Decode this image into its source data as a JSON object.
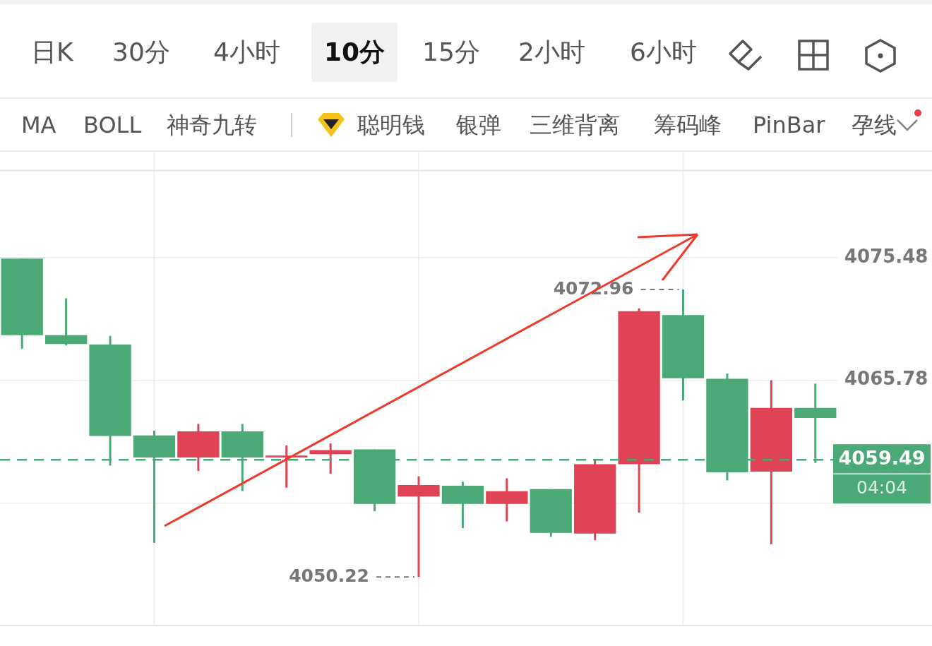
{
  "chart_data": {
    "type": "candlestick",
    "categories": [
      null,
      null,
      null,
      null,
      null,
      null,
      null,
      null,
      null,
      null,
      null,
      null,
      null,
      null,
      null,
      null,
      null,
      null,
      null
    ],
    "ohlc": [
      [
        4075.4,
        4075.4,
        4068.28,
        4069.34
      ],
      [
        4069.34,
        4072.26,
        4068.54,
        4068.65
      ],
      [
        4068.6,
        4069.29,
        4059.03,
        4061.37
      ],
      [
        4061.42,
        4061.79,
        4052.92,
        4059.67
      ],
      [
        4059.67,
        4062.33,
        4058.6,
        4061.74
      ],
      [
        4061.74,
        4062.33,
        4057.01,
        4059.67
      ],
      [
        4059.67,
        4060.62,
        4057.28,
        4059.83
      ],
      [
        4059.93,
        4060.78,
        4058.39,
        4060.25
      ],
      [
        4060.31,
        4060.31,
        4055.42,
        4056.0
      ],
      [
        4056.58,
        4058.18,
        4050.22,
        4057.49
      ],
      [
        4057.44,
        4057.75,
        4054.09,
        4056.0
      ],
      [
        4056.0,
        4058.02,
        4054.62,
        4057.01
      ],
      [
        4057.17,
        4057.17,
        4053.4,
        4053.71
      ],
      [
        4053.66,
        4059.51,
        4053.13,
        4059.14
      ],
      [
        4059.14,
        4071.47,
        4055.31,
        4071.25
      ],
      [
        4070.94,
        4072.96,
        4064.19,
        4065.94
      ],
      [
        4065.89,
        4066.31,
        4057.86,
        4058.5
      ],
      [
        4058.55,
        4065.78,
        4052.81,
        4063.6
      ],
      [
        4063.6,
        4065.51,
        4059.24,
        4062.8
      ]
    ],
    "colors": [
      "#4aa977",
      "#4aa977",
      "#4aa977",
      "#4aa977",
      "#e04355",
      "#4aa977",
      "#e04355",
      "#e04355",
      "#4aa977",
      "#e04355",
      "#4aa977",
      "#e04355",
      "#4aa977",
      "#e04355",
      "#e04355",
      "#4aa977",
      "#4aa977",
      "#e04355",
      "#4aa977"
    ],
    "ylim": [
      4046.38,
      4082.42
    ],
    "yticks": [
      4075.48,
      4065.78,
      {
        "value": 4056.08,
        "label": null
      }
    ],
    "grid": true,
    "legend": false,
    "ref_lines": [
      {
        "axis": "y",
        "value": 4059.49,
        "label": "4059.49",
        "color": "#4aa977",
        "line_style": "dashed"
      }
    ],
    "annotations": [
      "日K",
      "30分",
      "4小时",
      "10分",
      "15分",
      "2小时",
      "6小时",
      "MA",
      "BOLL",
      "神奇九转",
      "聪明钱",
      "银弹",
      "三维背离",
      "筹码峰",
      "PinBar",
      "孕线",
      "04:04",
      "4072.96",
      "4050.22"
    ]
  }
}
